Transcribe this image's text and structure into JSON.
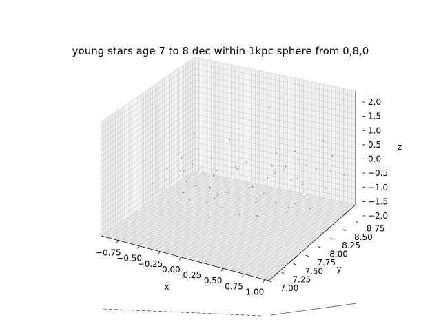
{
  "chart_data": {
    "type": "scatter",
    "projection": "3d",
    "title": "young stars age 7 to 8 dec within 1kpc sphere from 0,8,0",
    "xlabel": "x",
    "ylabel": "y",
    "zlabel": "z",
    "xlim": [
      -0.95,
      1.05
    ],
    "ylim": [
      7.0,
      8.9
    ],
    "zlim": [
      -2.0,
      2.0
    ],
    "x_ticks": [
      "−0.75",
      "−0.50",
      "−0.25",
      "0.00",
      "0.25",
      "0.50",
      "0.75",
      "1.00"
    ],
    "y_ticks": [
      "7.00",
      "7.25",
      "7.50",
      "7.75",
      "8.00",
      "8.25",
      "8.50",
      "8.75"
    ],
    "z_ticks": [
      "−2.0",
      "−1.5",
      "−1.0",
      "−0.5",
      "0.0",
      "0.5",
      "1.0",
      "1.5",
      "2.0"
    ],
    "grid": true,
    "marker_color": "#1f77b4",
    "series": [
      {
        "points": [
          [
            -0.8,
            7.8,
            -1.0
          ],
          [
            -0.75,
            8.0,
            -0.7
          ],
          [
            -0.7,
            7.9,
            -0.9
          ],
          [
            -0.65,
            8.1,
            -0.8
          ],
          [
            -0.6,
            7.7,
            -0.95
          ],
          [
            -0.55,
            8.0,
            -0.6
          ],
          [
            -0.5,
            8.2,
            -0.75
          ],
          [
            -0.45,
            7.8,
            -1.05
          ],
          [
            -0.4,
            8.3,
            -0.4
          ],
          [
            -0.35,
            7.9,
            -0.85
          ],
          [
            -0.3,
            8.1,
            -1.1
          ],
          [
            -0.25,
            7.6,
            -0.9
          ],
          [
            -0.2,
            8.0,
            -0.5
          ],
          [
            -0.15,
            8.4,
            -0.7
          ],
          [
            -0.1,
            7.7,
            -1.0
          ],
          [
            -0.05,
            8.2,
            -0.3
          ],
          [
            0.0,
            7.9,
            -0.8
          ],
          [
            0.05,
            8.3,
            -1.05
          ],
          [
            0.1,
            7.8,
            -0.6
          ],
          [
            0.15,
            8.5,
            -0.9
          ],
          [
            0.2,
            7.5,
            -0.7
          ],
          [
            0.25,
            8.1,
            -1.2
          ],
          [
            0.3,
            8.4,
            -0.5
          ],
          [
            0.35,
            7.6,
            -0.95
          ],
          [
            0.4,
            8.0,
            -0.65
          ],
          [
            0.45,
            8.6,
            -0.8
          ],
          [
            0.5,
            7.7,
            -1.0
          ],
          [
            0.55,
            8.3,
            -0.4
          ],
          [
            0.6,
            7.9,
            -0.7
          ],
          [
            0.65,
            8.5,
            -0.6
          ],
          [
            0.7,
            8.0,
            -0.9
          ],
          [
            0.75,
            8.2,
            -0.3
          ],
          [
            0.8,
            7.8,
            -0.75
          ],
          [
            0.85,
            8.6,
            -0.2
          ],
          [
            0.9,
            8.4,
            -0.55
          ],
          [
            -0.6,
            8.3,
            0.3
          ],
          [
            -0.3,
            8.5,
            0.1
          ],
          [
            0.2,
            8.6,
            -0.1
          ],
          [
            0.5,
            8.0,
            0.4
          ],
          [
            0.7,
            8.7,
            0.6
          ],
          [
            -0.2,
            8.6,
            0.8
          ],
          [
            0.0,
            8.8,
            1.1
          ],
          [
            0.3,
            8.8,
            -0.2
          ],
          [
            0.4,
            8.7,
            -0.3
          ],
          [
            -0.5,
            7.9,
            -1.2
          ],
          [
            0.1,
            7.4,
            -1.0
          ],
          [
            0.6,
            7.6,
            -0.6
          ],
          [
            0.9,
            8.1,
            -0.9
          ],
          [
            0.85,
            8.3,
            0.2
          ],
          [
            -0.4,
            8.4,
            -0.95
          ],
          [
            -0.1,
            8.5,
            -0.55
          ],
          [
            0.15,
            8.2,
            -0.85
          ],
          [
            0.35,
            8.5,
            -0.45
          ],
          [
            0.55,
            8.6,
            -0.25
          ],
          [
            0.75,
            8.8,
            0.0
          ],
          [
            -0.7,
            8.2,
            -0.5
          ],
          [
            -0.45,
            8.0,
            -0.3
          ],
          [
            0.05,
            7.6,
            -0.6
          ],
          [
            0.45,
            7.8,
            -1.15
          ],
          [
            0.25,
            8.7,
            -0.65
          ],
          [
            -0.35,
            7.7,
            -0.45
          ],
          [
            0.65,
            8.2,
            -1.05
          ],
          [
            0.8,
            8.5,
            -0.35
          ],
          [
            -0.15,
            8.0,
            -1.15
          ],
          [
            0.95,
            8.7,
            -0.4
          ]
        ]
      }
    ]
  }
}
